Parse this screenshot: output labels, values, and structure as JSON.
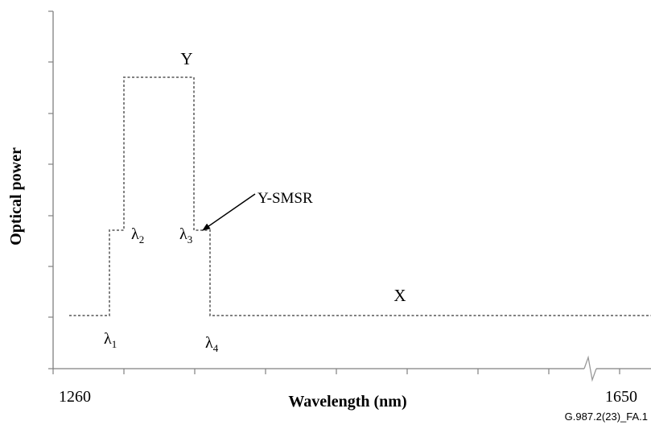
{
  "axes": {
    "ylabel": "Optical power",
    "xlabel": "Wavelength (nm)",
    "x_min_label": "1260",
    "x_max_label": "1650"
  },
  "labels": {
    "y_band": "Y",
    "x_band": "X",
    "smsr": "Y-SMSR",
    "lambda": "λ",
    "lambda1_sub": "1",
    "lambda2_sub": "2",
    "lambda3_sub": "3",
    "lambda4_sub": "4"
  },
  "figure_id": "G.987.2(23)_FA.1"
}
